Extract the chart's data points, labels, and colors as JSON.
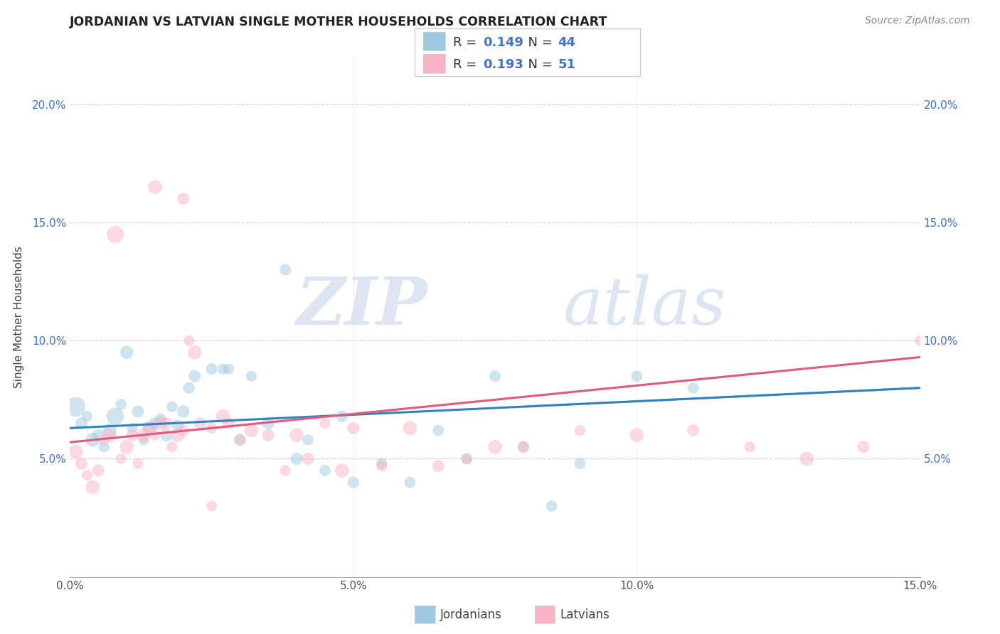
{
  "title": "JORDANIAN VS LATVIAN SINGLE MOTHER HOUSEHOLDS CORRELATION CHART",
  "source": "Source: ZipAtlas.com",
  "ylabel": "Single Mother Households",
  "xlim": [
    0.0,
    0.15
  ],
  "ylim": [
    0.0,
    0.22
  ],
  "xtick_labels": [
    "0.0%",
    "5.0%",
    "10.0%",
    "15.0%"
  ],
  "xtick_vals": [
    0.0,
    0.05,
    0.1,
    0.15
  ],
  "ytick_labels": [
    "5.0%",
    "10.0%",
    "15.0%",
    "20.0%"
  ],
  "ytick_vals": [
    0.05,
    0.1,
    0.15,
    0.2
  ],
  "legend_labels": [
    "Jordanians",
    "Latvians"
  ],
  "jordanian_color": "#9ecae1",
  "latvian_color": "#fbb4c6",
  "jordanian_line_color": "#3182bd",
  "latvian_line_color": "#e05a80",
  "dashed_line_color": "#aaaaaa",
  "r_jordanian": 0.149,
  "n_jordanian": 44,
  "r_latvian": 0.193,
  "n_latvian": 51,
  "watermark_zip": "ZIP",
  "watermark_atlas": "atlas",
  "blue_text_color": "#4472c4",
  "jordanian_x": [
    0.001,
    0.002,
    0.003,
    0.004,
    0.005,
    0.006,
    0.007,
    0.008,
    0.009,
    0.01,
    0.011,
    0.012,
    0.013,
    0.014,
    0.015,
    0.016,
    0.017,
    0.018,
    0.019,
    0.02,
    0.021,
    0.022,
    0.025,
    0.027,
    0.028,
    0.03,
    0.032,
    0.035,
    0.038,
    0.04,
    0.042,
    0.045,
    0.048,
    0.05,
    0.055,
    0.06,
    0.065,
    0.07,
    0.075,
    0.08,
    0.085,
    0.09,
    0.1,
    0.11
  ],
  "jordanian_y": [
    0.072,
    0.065,
    0.068,
    0.058,
    0.06,
    0.055,
    0.062,
    0.068,
    0.073,
    0.095,
    0.063,
    0.07,
    0.058,
    0.063,
    0.065,
    0.067,
    0.06,
    0.072,
    0.064,
    0.07,
    0.08,
    0.085,
    0.088,
    0.088,
    0.088,
    0.058,
    0.085,
    0.065,
    0.13,
    0.05,
    0.058,
    0.045,
    0.068,
    0.04,
    0.048,
    0.04,
    0.062,
    0.05,
    0.085,
    0.055,
    0.03,
    0.048,
    0.085,
    0.08
  ],
  "jordanian_sizes": [
    400,
    150,
    120,
    200,
    150,
    120,
    200,
    300,
    120,
    180,
    120,
    150,
    120,
    200,
    150,
    120,
    160,
    120,
    140,
    160,
    140,
    150,
    140,
    120,
    120,
    150,
    120,
    150,
    130,
    150,
    120,
    130,
    140,
    140,
    130,
    130,
    130,
    130,
    130,
    130,
    130,
    130,
    130,
    130
  ],
  "latvian_x": [
    0.001,
    0.002,
    0.003,
    0.004,
    0.005,
    0.006,
    0.007,
    0.008,
    0.009,
    0.01,
    0.011,
    0.012,
    0.013,
    0.014,
    0.015,
    0.016,
    0.017,
    0.018,
    0.019,
    0.02,
    0.021,
    0.022,
    0.023,
    0.025,
    0.027,
    0.028,
    0.03,
    0.032,
    0.035,
    0.038,
    0.04,
    0.042,
    0.045,
    0.048,
    0.05,
    0.055,
    0.06,
    0.065,
    0.07,
    0.075,
    0.08,
    0.09,
    0.1,
    0.11,
    0.12,
    0.13,
    0.14,
    0.15,
    0.015,
    0.02,
    0.025
  ],
  "latvian_y": [
    0.053,
    0.048,
    0.043,
    0.038,
    0.045,
    0.058,
    0.06,
    0.145,
    0.05,
    0.055,
    0.06,
    0.048,
    0.06,
    0.063,
    0.06,
    0.065,
    0.065,
    0.055,
    0.06,
    0.062,
    0.1,
    0.095,
    0.065,
    0.063,
    0.068,
    0.065,
    0.058,
    0.062,
    0.06,
    0.045,
    0.06,
    0.05,
    0.065,
    0.045,
    0.063,
    0.047,
    0.063,
    0.047,
    0.05,
    0.055,
    0.055,
    0.062,
    0.06,
    0.062,
    0.055,
    0.05,
    0.055,
    0.1,
    0.165,
    0.16,
    0.03
  ],
  "latvian_sizes": [
    200,
    150,
    120,
    200,
    150,
    120,
    200,
    300,
    120,
    200,
    150,
    120,
    200,
    150,
    120,
    200,
    150,
    120,
    200,
    150,
    120,
    200,
    150,
    120,
    200,
    150,
    120,
    200,
    150,
    120,
    200,
    150,
    120,
    200,
    150,
    120,
    200,
    150,
    120,
    200,
    150,
    120,
    200,
    150,
    120,
    200,
    150,
    120,
    200,
    150,
    120
  ]
}
